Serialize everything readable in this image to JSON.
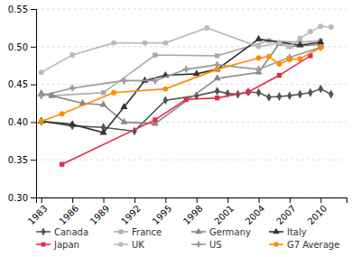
{
  "chart_data": {
    "type": "line",
    "xlim": [
      1982.5,
      2012.5
    ],
    "xticks": [
      1983,
      1986,
      1989,
      1992,
      1995,
      1998,
      2001,
      2004,
      2007,
      2010
    ],
    "ylim": [
      0.3,
      0.55
    ],
    "yticks": [
      {
        "value": 0.3,
        "label": "0.30"
      },
      0.35,
      {
        "value": 0.4,
        "label": "0.40"
      },
      0.45,
      {
        "value": 0.5,
        "label": "0.50"
      },
      0.55
    ],
    "grid": true,
    "legend": "bottom",
    "series": [
      {
        "name": "Canada",
        "color": "#555555",
        "marker": "diamond",
        "x": [
          1983,
          1986,
          1989,
          1992,
          1995,
          1998,
          2000,
          2001,
          2002,
          2003,
          2004,
          2005,
          2006,
          2007,
          2008,
          2009,
          2010,
          2011
        ],
        "values": [
          0.401,
          0.395,
          0.393,
          0.388,
          0.429,
          0.435,
          0.441,
          0.438,
          0.437,
          0.44,
          0.439,
          0.433,
          0.434,
          0.435,
          0.437,
          0.439,
          0.444,
          0.437
        ]
      },
      {
        "name": "France",
        "color": "#AAAAAA",
        "marker": "square",
        "x": [
          1984,
          1989,
          1994,
          2000,
          2005,
          2008,
          2010
        ],
        "values": [
          0.435,
          0.439,
          0.489,
          0.488,
          0.508,
          0.506,
          0.508
        ]
      },
      {
        "name": "Germany",
        "color": "#888888",
        "marker": "triangle",
        "x": [
          1983,
          1984,
          1987,
          1989,
          1991,
          1994,
          2000,
          2004,
          2006,
          2007,
          2010
        ],
        "values": [
          0.438,
          0.435,
          0.425,
          0.423,
          0.4,
          0.398,
          0.458,
          0.466,
          0.504,
          0.5,
          0.503
        ]
      },
      {
        "name": "Italy",
        "color": "#333333",
        "marker": "triangle",
        "x": [
          1983,
          1986,
          1989,
          1991,
          1993,
          1995,
          1998,
          2000,
          2004,
          2008,
          2010
        ],
        "values": [
          0.401,
          0.397,
          0.386,
          0.42,
          0.455,
          0.462,
          0.464,
          0.47,
          0.51,
          0.502,
          0.506
        ]
      },
      {
        "name": "Japan",
        "color": "#E8274B",
        "marker": "square",
        "x": [
          1985,
          1994,
          1997,
          2000,
          2003,
          2006,
          2009
        ],
        "values": [
          0.344,
          0.403,
          0.43,
          0.432,
          0.44,
          0.462,
          0.488
        ]
      },
      {
        "name": "UK",
        "color": "#BBBBBB",
        "marker": "circle",
        "x": [
          1983,
          1986,
          1990,
          1993,
          1995,
          1999,
          2004,
          2006,
          2007,
          2008,
          2009,
          2010,
          2011
        ],
        "values": [
          0.466,
          0.489,
          0.505,
          0.505,
          0.505,
          0.525,
          0.5,
          0.505,
          0.5,
          0.511,
          0.52,
          0.527,
          0.526
        ]
      },
      {
        "name": "US",
        "color": "#999999",
        "marker": "plus",
        "x": [
          1983,
          1986,
          1991,
          1994,
          1997,
          2000,
          2004,
          2007,
          2010
        ],
        "values": [
          0.435,
          0.445,
          0.455,
          0.455,
          0.47,
          0.476,
          0.47,
          0.486,
          0.499
        ]
      },
      {
        "name": "G7 Average",
        "color": "#FF8C00",
        "marker": "circle",
        "x": [
          1983,
          1985,
          1990,
          1995,
          2000,
          2004,
          2005,
          2006,
          2007,
          2008,
          2010
        ],
        "values": [
          0.401,
          0.411,
          0.439,
          0.444,
          0.47,
          0.485,
          0.487,
          0.477,
          0.483,
          0.484,
          0.499
        ]
      }
    ]
  }
}
